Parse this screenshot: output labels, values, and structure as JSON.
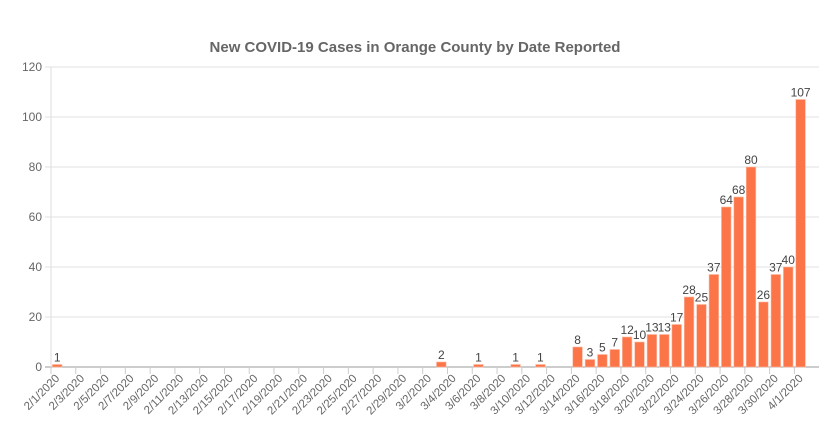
{
  "chart_data": {
    "type": "bar",
    "title": "New COVID-19 Cases in Orange County by Date Reported",
    "xlabel": "",
    "ylabel": "",
    "ylim": [
      0,
      120
    ],
    "yticks": [
      0,
      20,
      40,
      60,
      80,
      100,
      120
    ],
    "grid": true,
    "legend": "none",
    "bar_color": "#fb7548",
    "categories": [
      "2/1/2020",
      "2/2/2020",
      "2/3/2020",
      "2/4/2020",
      "2/5/2020",
      "2/6/2020",
      "2/7/2020",
      "2/8/2020",
      "2/9/2020",
      "2/10/2020",
      "2/11/2020",
      "2/12/2020",
      "2/13/2020",
      "2/14/2020",
      "2/15/2020",
      "2/16/2020",
      "2/17/2020",
      "2/18/2020",
      "2/19/2020",
      "2/20/2020",
      "2/21/2020",
      "2/22/2020",
      "2/23/2020",
      "2/24/2020",
      "2/25/2020",
      "2/26/2020",
      "2/27/2020",
      "2/28/2020",
      "2/29/2020",
      "3/1/2020",
      "3/2/2020",
      "3/3/2020",
      "3/4/2020",
      "3/5/2020",
      "3/6/2020",
      "3/7/2020",
      "3/8/2020",
      "3/9/2020",
      "3/10/2020",
      "3/11/2020",
      "3/12/2020",
      "3/13/2020",
      "3/14/2020",
      "3/15/2020",
      "3/16/2020",
      "3/17/2020",
      "3/18/2020",
      "3/19/2020",
      "3/20/2020",
      "3/21/2020",
      "3/22/2020",
      "3/23/2020",
      "3/24/2020",
      "3/25/2020",
      "3/26/2020",
      "3/27/2020",
      "3/28/2020",
      "3/29/2020",
      "3/30/2020",
      "3/31/2020",
      "4/1/2020"
    ],
    "values": [
      1,
      0,
      0,
      0,
      0,
      0,
      0,
      0,
      0,
      0,
      0,
      0,
      0,
      0,
      0,
      0,
      0,
      0,
      0,
      0,
      0,
      0,
      0,
      0,
      0,
      0,
      0,
      0,
      0,
      0,
      0,
      2,
      0,
      0,
      1,
      0,
      0,
      1,
      0,
      1,
      0,
      0,
      8,
      3,
      5,
      7,
      12,
      10,
      13,
      13,
      17,
      28,
      25,
      37,
      64,
      68,
      80,
      26,
      37,
      40,
      107
    ]
  }
}
